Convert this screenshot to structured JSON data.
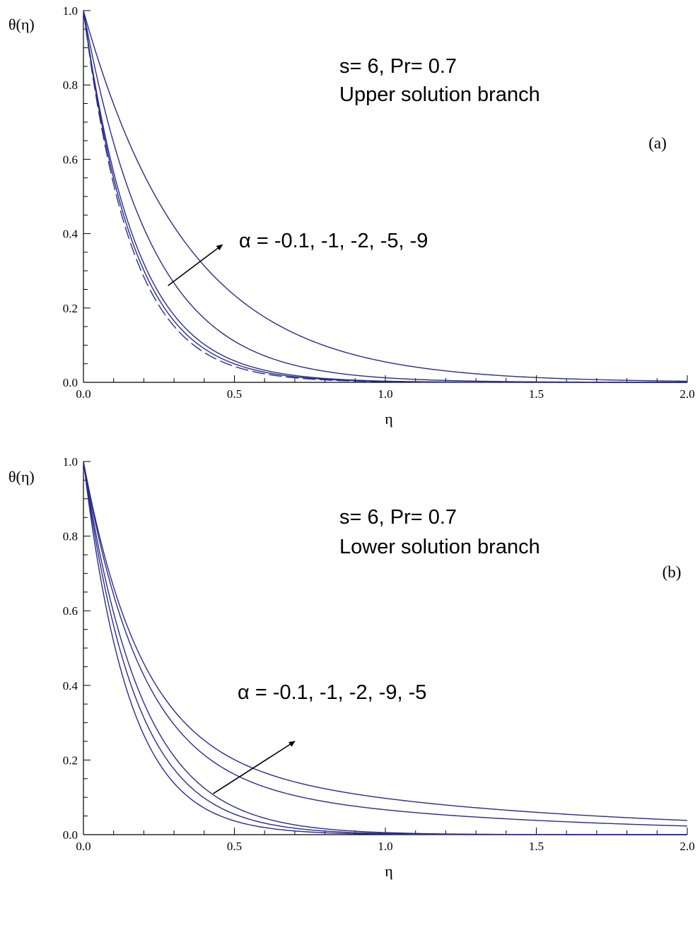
{
  "chart_data": [
    {
      "type": "line",
      "panel_label": "(a)",
      "annotation_params": "s= 6, Pr= 0.7",
      "annotation_branch": "Upper solution branch",
      "alpha_label": "α = -0.1, -1, -2, -5, -9",
      "xlabel": "η",
      "ylabel": "θ(η)",
      "xlim": [
        0,
        2
      ],
      "ylim": [
        0,
        1
      ],
      "x_ticks": [
        "0.0",
        "0.5",
        "1.0",
        "1.5",
        "2.0"
      ],
      "y_ticks": [
        "0.0",
        "0.2",
        "0.4",
        "0.6",
        "0.8",
        "1.0"
      ],
      "arrow": {
        "from": [
          0.28,
          0.26
        ],
        "to": [
          0.46,
          0.37
        ]
      },
      "series": [
        {
          "decay": 6.3,
          "style": "dashed"
        },
        {
          "decay": 6.0
        },
        {
          "decay": 5.7
        },
        {
          "decay": 4.4
        },
        {
          "decay": 2.9
        }
      ],
      "color": "#2b2b8c"
    },
    {
      "type": "line",
      "panel_label": "(b)",
      "annotation_params": "s= 6, Pr= 0.7",
      "annotation_branch": "Lower solution branch",
      "alpha_label": "α = -0.1, -1, -2, -9, -5",
      "xlabel": "η",
      "ylabel": "θ(η)",
      "xlim": [
        0,
        2
      ],
      "ylim": [
        0,
        1
      ],
      "x_ticks": [
        "0.0",
        "0.5",
        "1.0",
        "1.5",
        "2.0"
      ],
      "y_ticks": [
        "0.0",
        "0.2",
        "0.4",
        "0.6",
        "0.8",
        "1.0"
      ],
      "arrow": {
        "from": [
          0.43,
          0.11
        ],
        "to": [
          0.7,
          0.25
        ]
      },
      "series": [
        {
          "decay": 6.6
        },
        {
          "decay": 5.8
        },
        {
          "decay": 5.2
        },
        {
          "mix": [
            0.83,
            5.3,
            0.17,
            1.0
          ]
        },
        {
          "mix": [
            0.77,
            5.3,
            0.23,
            0.9
          ]
        }
      ],
      "color": "#2b2b8c"
    }
  ]
}
